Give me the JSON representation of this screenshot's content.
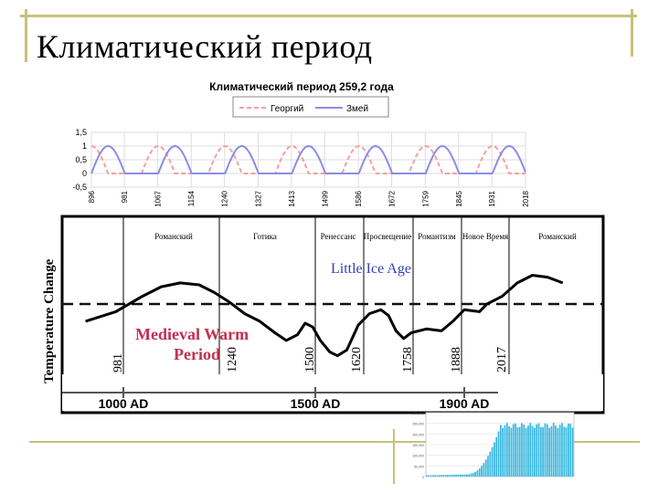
{
  "slide_title": "Климатический период",
  "chart_data": [
    {
      "type": "line",
      "title": "Климатический период 259,2 года",
      "series": [
        {
          "name": "Георгий",
          "color": "#f4a0a0",
          "dash": true,
          "phase_start": 896,
          "period": 86.4
        },
        {
          "name": "Змей",
          "color": "#8c8ce6",
          "dash": false,
          "phase_start": 896,
          "period": 86.4
        }
      ],
      "yticks": [
        "1,5",
        "1",
        "0,5",
        "0",
        "-0,5"
      ],
      "ylim": [
        -0.5,
        1.5
      ],
      "xticks": [
        "896",
        "981",
        "1067",
        "1154",
        "1240",
        "1327",
        "1413",
        "1499",
        "1586",
        "1672",
        "1759",
        "1845",
        "1931",
        "2018"
      ],
      "xlim": [
        896,
        2018
      ]
    },
    {
      "type": "line",
      "ylabel": "Temperature Change",
      "xticks": [
        "1000 AD",
        "1500 AD",
        "1900 AD"
      ],
      "periods": [
        "Романский",
        "Готика",
        "Ренессанс",
        "Просвещение",
        "Романтизм",
        "Новое Время",
        "Романский"
      ],
      "year_markers": [
        "981",
        "1240",
        "1500",
        "1620",
        "1758",
        "1888",
        "2017"
      ],
      "annotations": {
        "little_ice_age": "Little Ice Age",
        "medieval_line1": "Medieval Warm",
        "medieval_line2": "Period"
      },
      "curve": {
        "x": [
          900,
          980,
          1050,
          1100,
          1150,
          1200,
          1240,
          1280,
          1320,
          1360,
          1400,
          1430,
          1460,
          1480,
          1500,
          1520,
          1545,
          1565,
          1590,
          1620,
          1650,
          1680,
          1700,
          1720,
          1740,
          1760,
          1800,
          1840,
          1870,
          1900,
          1940,
          1960,
          2000,
          2040,
          2080,
          2120,
          2160
        ],
        "y": [
          -0.45,
          -0.2,
          0.2,
          0.45,
          0.55,
          0.5,
          0.3,
          0.05,
          -0.25,
          -0.45,
          -0.75,
          -0.95,
          -0.8,
          -0.5,
          -0.6,
          -0.95,
          -1.25,
          -1.35,
          -1.2,
          -0.55,
          -0.25,
          -0.15,
          -0.3,
          -0.7,
          -0.9,
          -0.75,
          -0.65,
          -0.7,
          -0.45,
          -0.15,
          -0.2,
          0.0,
          0.2,
          0.55,
          0.75,
          0.7,
          0.55
        ]
      },
      "baseline": 0
    },
    {
      "type": "bar",
      "yticks": [
        "300,000",
        "250,000",
        "200,000",
        "150,000",
        "100,000",
        "50,000",
        "0"
      ]
    }
  ]
}
